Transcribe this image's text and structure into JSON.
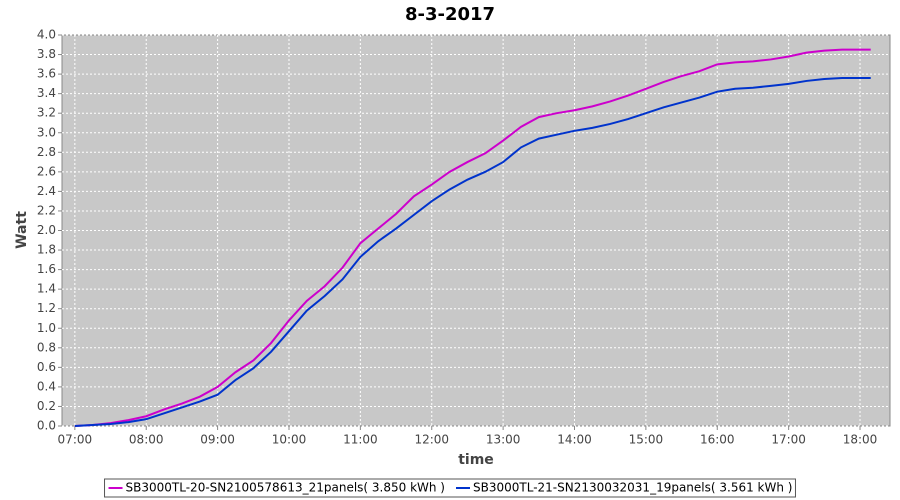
{
  "chart_data": {
    "type": "line",
    "title": "8-3-2017",
    "xlabel": "time",
    "ylabel": "Watt",
    "x": [
      7.0,
      7.25,
      7.5,
      7.75,
      8.0,
      8.25,
      8.5,
      8.75,
      9.0,
      9.25,
      9.5,
      9.75,
      10.0,
      10.25,
      10.5,
      10.75,
      11.0,
      11.25,
      11.5,
      11.75,
      12.0,
      12.25,
      12.5,
      12.75,
      13.0,
      13.25,
      13.5,
      13.75,
      14.0,
      14.25,
      14.5,
      14.75,
      15.0,
      15.25,
      15.5,
      15.75,
      16.0,
      16.25,
      16.5,
      16.75,
      17.0,
      17.25,
      17.5,
      17.75,
      18.15
    ],
    "series": [
      {
        "name": "SB3000TL-20-SN2100578613_21panels( 3.850 kWh )",
        "color": "#cc00cc",
        "values": [
          0,
          0.01,
          0.03,
          0.06,
          0.1,
          0.17,
          0.23,
          0.3,
          0.4,
          0.55,
          0.67,
          0.85,
          1.08,
          1.28,
          1.43,
          1.62,
          1.87,
          2.02,
          2.17,
          2.35,
          2.47,
          2.6,
          2.7,
          2.79,
          2.92,
          3.06,
          3.16,
          3.2,
          3.23,
          3.27,
          3.32,
          3.38,
          3.45,
          3.52,
          3.58,
          3.63,
          3.7,
          3.72,
          3.73,
          3.75,
          3.78,
          3.82,
          3.84,
          3.85,
          3.85
        ]
      },
      {
        "name": "SB3000TL-21-SN2130032031_19panels( 3.561 kWh )",
        "color": "#0033cc",
        "values": [
          0,
          0.01,
          0.02,
          0.04,
          0.07,
          0.13,
          0.19,
          0.25,
          0.32,
          0.47,
          0.59,
          0.76,
          0.97,
          1.18,
          1.33,
          1.5,
          1.73,
          1.89,
          2.02,
          2.16,
          2.3,
          2.42,
          2.52,
          2.6,
          2.7,
          2.85,
          2.94,
          2.98,
          3.02,
          3.05,
          3.09,
          3.14,
          3.2,
          3.26,
          3.31,
          3.36,
          3.42,
          3.45,
          3.46,
          3.48,
          3.5,
          3.53,
          3.55,
          3.56,
          3.56
        ]
      }
    ],
    "xlim": [
      6.82,
      18.42
    ],
    "xticks": [
      {
        "value": 7,
        "label": "07:00"
      },
      {
        "value": 8,
        "label": "08:00"
      },
      {
        "value": 9,
        "label": "09:00"
      },
      {
        "value": 10,
        "label": "10:00"
      },
      {
        "value": 11,
        "label": "11:00"
      },
      {
        "value": 12,
        "label": "12:00"
      },
      {
        "value": 13,
        "label": "13:00"
      },
      {
        "value": 14,
        "label": "14:00"
      },
      {
        "value": 15,
        "label": "15:00"
      },
      {
        "value": 16,
        "label": "16:00"
      },
      {
        "value": 17,
        "label": "17:00"
      },
      {
        "value": 18,
        "label": "18:00"
      }
    ],
    "ylim": [
      0,
      4.0
    ],
    "yticks": [
      {
        "value": 0,
        "label": "0.0"
      },
      0.2,
      0.4,
      0.6,
      0.8,
      {
        "value": 1,
        "label": "1.0"
      },
      1.2,
      1.4,
      1.6,
      1.8,
      {
        "value": 2,
        "label": "2.0"
      },
      2.2,
      2.4,
      2.6,
      2.8,
      {
        "value": 3,
        "label": "3.0"
      },
      3.2,
      3.4,
      3.6,
      3.8,
      {
        "value": 4,
        "label": "4.0"
      }
    ],
    "grid": true,
    "legend": "bottom"
  }
}
